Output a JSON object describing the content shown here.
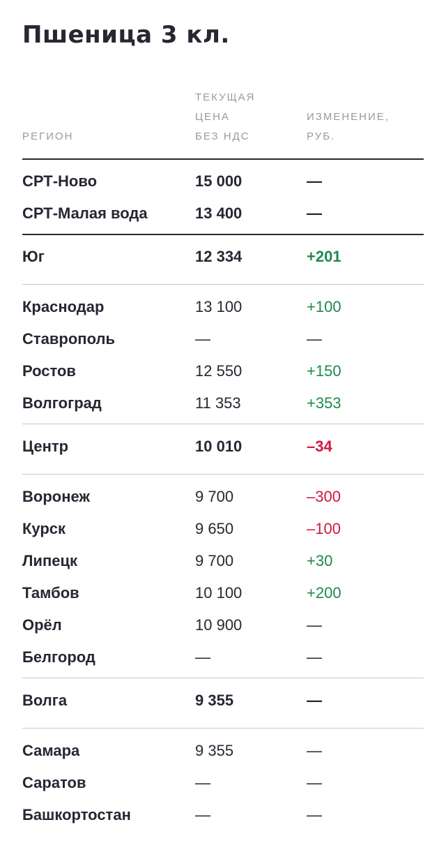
{
  "title": "Пшеница 3 кл.",
  "headers": {
    "region": [
      "РЕГИОН"
    ],
    "price": [
      "ТЕКУЩАЯ",
      "ЦЕНА",
      "БЕЗ НДС"
    ],
    "change": [
      "ИЗМЕНЕНИЕ,",
      "РУБ."
    ]
  },
  "colors": {
    "positive": "#1e8a4c",
    "negative": "#d0173f",
    "text": "#2a2533",
    "header": "#9a9a9a"
  },
  "groups": [
    {
      "rows": [
        {
          "region": "СРТ-Ново",
          "price": "15 000",
          "change": "—",
          "trend": "none",
          "bold": true
        },
        {
          "region": "СРТ-Малая вода",
          "price": "13 400",
          "change": "—",
          "trend": "none",
          "bold": true
        }
      ]
    },
    {
      "summary": {
        "region": "Юг",
        "price": "12 334",
        "change": "+201",
        "trend": "up"
      },
      "rows": [
        {
          "region": "Краснодар",
          "price": "13 100",
          "change": "+100",
          "trend": "up"
        },
        {
          "region": "Ставрополь",
          "price": "—",
          "change": "—",
          "trend": "none"
        },
        {
          "region": "Ростов",
          "price": "12 550",
          "change": "+150",
          "trend": "up"
        },
        {
          "region": "Волгоград",
          "price": "11 353",
          "change": "+353",
          "trend": "up"
        }
      ]
    },
    {
      "summary": {
        "region": "Центр",
        "price": "10 010",
        "change": "–34",
        "trend": "down"
      },
      "rows": [
        {
          "region": "Воронеж",
          "price": "9 700",
          "change": "–300",
          "trend": "down"
        },
        {
          "region": "Курск",
          "price": "9 650",
          "change": "–100",
          "trend": "down"
        },
        {
          "region": "Липецк",
          "price": "9 700",
          "change": "+30",
          "trend": "up"
        },
        {
          "region": "Тамбов",
          "price": "10 100",
          "change": "+200",
          "trend": "up"
        },
        {
          "region": "Орёл",
          "price": "10 900",
          "change": "—",
          "trend": "none"
        },
        {
          "region": "Белгород",
          "price": "—",
          "change": "—",
          "trend": "none"
        }
      ]
    },
    {
      "summary": {
        "region": "Волга",
        "price": "9 355",
        "change": "—",
        "trend": "none"
      },
      "rows": [
        {
          "region": "Самара",
          "price": "9 355",
          "change": "—",
          "trend": "none"
        },
        {
          "region": "Саратов",
          "price": "—",
          "change": "—",
          "trend": "none"
        },
        {
          "region": "Башкортостан",
          "price": "—",
          "change": "—",
          "trend": "none"
        }
      ]
    }
  ]
}
